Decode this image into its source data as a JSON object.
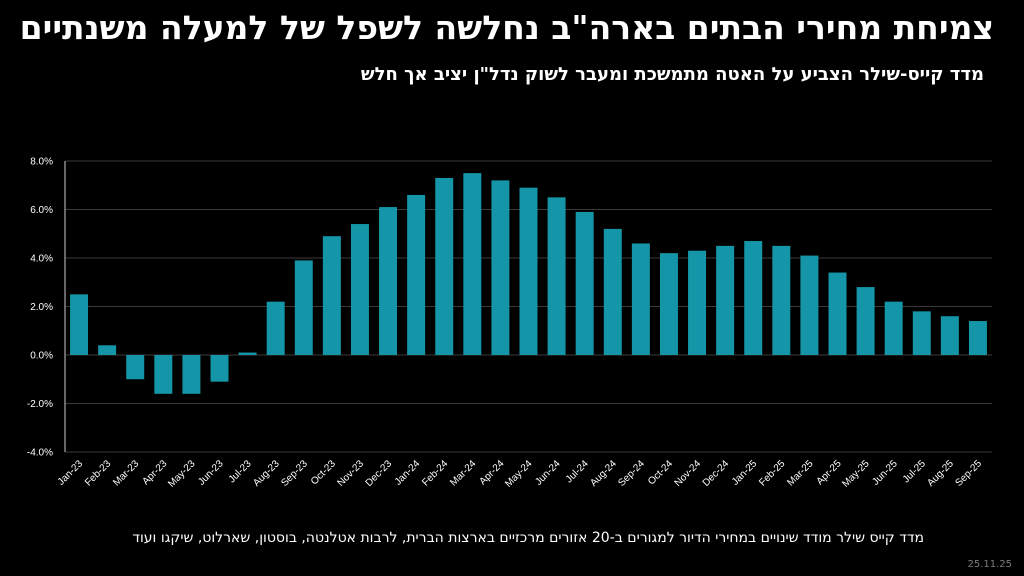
{
  "header": {
    "title": "צמיחת מחירי הבתים בארה\"ב נחלשה לשפל של למעלה משנתיים",
    "subtitle": "מדד קייס-שילר הצביע על האטה מתמשכת ומעבר לשוק נדל\"ן יציב אך חלש"
  },
  "footer": {
    "note": "מדד קייס שילר מודד שינויים במחירי הדיור למגורים ב-20 אזורים מרכזיים בארצות הברית, לרבות אטלנטה, בוסטון, שארלוט, שיקגו ועוד",
    "date": "25.11.25"
  },
  "colors": {
    "bar": "#1596a8",
    "grid": "#3a3a3a",
    "axis": "#cccccc",
    "text": "#ffffff"
  },
  "chart_data": {
    "type": "bar",
    "title": "",
    "xlabel": "",
    "ylabel": "",
    "ylim": [
      -4,
      8
    ],
    "yticks": [
      -4,
      -2,
      0,
      2,
      4,
      6,
      8
    ],
    "ytick_labels": [
      "-4.0%",
      "-2.0%",
      "0.0%",
      "2.0%",
      "4.0%",
      "6.0%",
      "8.0%"
    ],
    "grid": true,
    "categories": [
      "Jan-23",
      "Feb-23",
      "Mar-23",
      "Apr-23",
      "May-23",
      "Jun-23",
      "Jul-23",
      "Aug-23",
      "Sep-23",
      "Oct-23",
      "Nov-23",
      "Dec-23",
      "Jan-24",
      "Feb-24",
      "Mar-24",
      "Apr-24",
      "May-24",
      "Jun-24",
      "Jul-24",
      "Aug-24",
      "Sep-24",
      "Oct-24",
      "Nov-24",
      "Dec-24",
      "Jan-25",
      "Feb-25",
      "Mar-25",
      "Apr-25",
      "May-25",
      "Jun-25",
      "Jul-25",
      "Aug-25",
      "Sep-25"
    ],
    "values": [
      2.5,
      0.4,
      -1.0,
      -1.6,
      -1.6,
      -1.1,
      0.1,
      2.2,
      3.9,
      4.9,
      5.4,
      6.1,
      6.6,
      7.3,
      7.5,
      7.2,
      6.9,
      6.5,
      5.9,
      5.2,
      4.6,
      4.2,
      4.3,
      4.5,
      4.7,
      4.5,
      4.1,
      3.4,
      2.8,
      2.2,
      1.8,
      1.6,
      1.4
    ]
  }
}
